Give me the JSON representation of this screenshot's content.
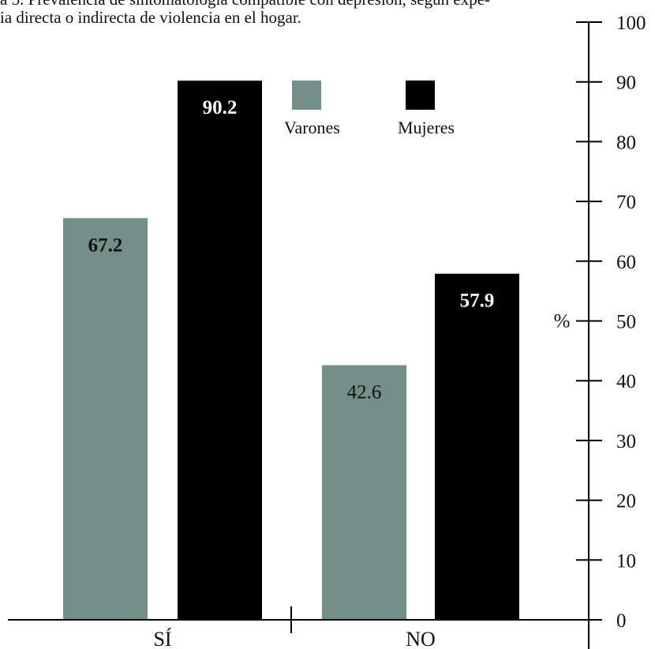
{
  "chart_data": {
    "type": "bar",
    "title": "a 5. Prevalencia de sintomatología compatible con depresión, según expe-\nia directa o indirecta de violencia en el hogar.",
    "categories": [
      "SÍ",
      "NO"
    ],
    "series": [
      {
        "name": "Varones",
        "values": [
          67.2,
          42.6
        ],
        "color": "#738f88"
      },
      {
        "name": "Mujeres",
        "values": [
          90.2,
          57.9
        ],
        "color": "#000000"
      }
    ],
    "data_labels": [
      "67.2",
      "42.6",
      "90.2",
      "57.9"
    ],
    "ylabel": "%",
    "ylim": [
      0,
      100
    ],
    "yticks": [
      "0",
      "10",
      "20",
      "30",
      "40",
      "50",
      "60",
      "70",
      "80",
      "90",
      "100"
    ],
    "legend_position": "top-right",
    "grid": false
  }
}
